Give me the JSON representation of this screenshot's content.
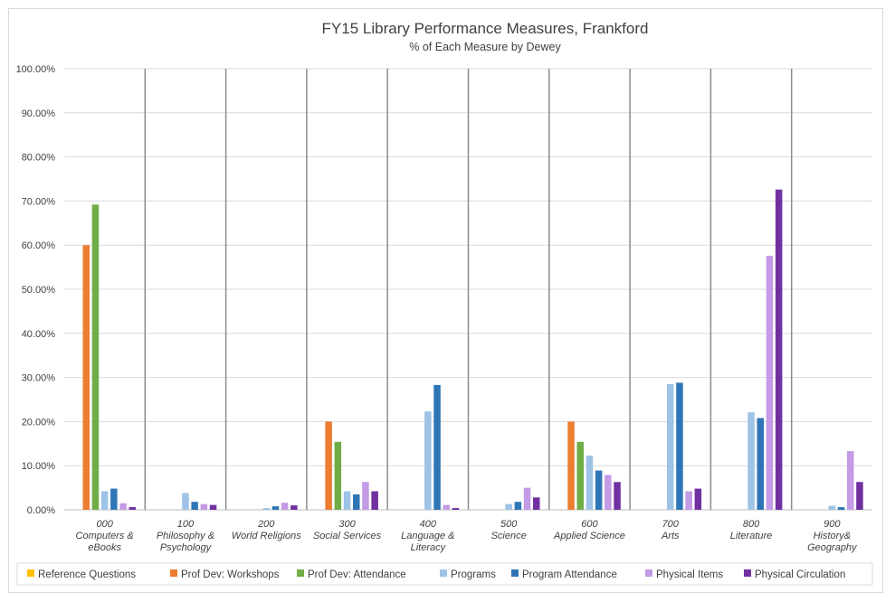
{
  "chart_data": {
    "type": "bar",
    "title": "FY15 Library Performance Measures, Frankford",
    "subtitle": "% of Each Measure by Dewey",
    "xlabel": "",
    "ylabel": "",
    "ylim": [
      0,
      100
    ],
    "yticks": [
      "0.00%",
      "10.00%",
      "20.00%",
      "30.00%",
      "40.00%",
      "50.00%",
      "60.00%",
      "70.00%",
      "80.00%",
      "90.00%",
      "100.00%"
    ],
    "grid": true,
    "legend_position": "bottom",
    "categories": [
      [
        "000",
        "Computers &",
        "eBooks"
      ],
      [
        "100",
        "Philosophy &",
        "Psychology"
      ],
      [
        "200",
        "World Religions"
      ],
      [
        "300",
        "Social Services"
      ],
      [
        "400",
        "Language &",
        "Literacy"
      ],
      [
        "500",
        "Science"
      ],
      [
        "600",
        "Applied Science"
      ],
      [
        "700",
        "Arts"
      ],
      [
        "800",
        "Literature"
      ],
      [
        "900",
        "History&",
        "Geography"
      ]
    ],
    "series": [
      {
        "name": "Reference Questions",
        "color": "#ffc000",
        "values": [
          0,
          0,
          0,
          0,
          0,
          0,
          0,
          0,
          0,
          0
        ]
      },
      {
        "name": "Prof Dev: Workshops",
        "color": "#ed7d31",
        "values": [
          60,
          0,
          0,
          20,
          0,
          0,
          20,
          0,
          0,
          0
        ]
      },
      {
        "name": "Prof Dev: Attendance",
        "color": "#70ad47",
        "values": [
          69.2,
          0,
          0,
          15.4,
          0,
          0,
          15.4,
          0,
          0,
          0
        ]
      },
      {
        "name": "Programs",
        "color": "#9dc3e6",
        "values": [
          4.2,
          3.8,
          0.4,
          4.2,
          22.3,
          1.3,
          12.3,
          28.5,
          22.1,
          0.9
        ]
      },
      {
        "name": "Program Attendance",
        "color": "#2e75b6",
        "values": [
          4.8,
          1.8,
          0.8,
          3.5,
          28.3,
          1.8,
          8.9,
          28.8,
          20.8,
          0.6
        ]
      },
      {
        "name": "Physical Items",
        "color": "#c39be6",
        "values": [
          1.5,
          1.3,
          1.6,
          6.3,
          1.1,
          5.0,
          7.9,
          4.2,
          57.6,
          13.3
        ]
      },
      {
        "name": "Physical Circulation",
        "color": "#7030a0",
        "values": [
          0.6,
          1.1,
          1.0,
          4.2,
          0.4,
          2.8,
          6.3,
          4.8,
          72.6,
          6.3
        ]
      }
    ]
  }
}
